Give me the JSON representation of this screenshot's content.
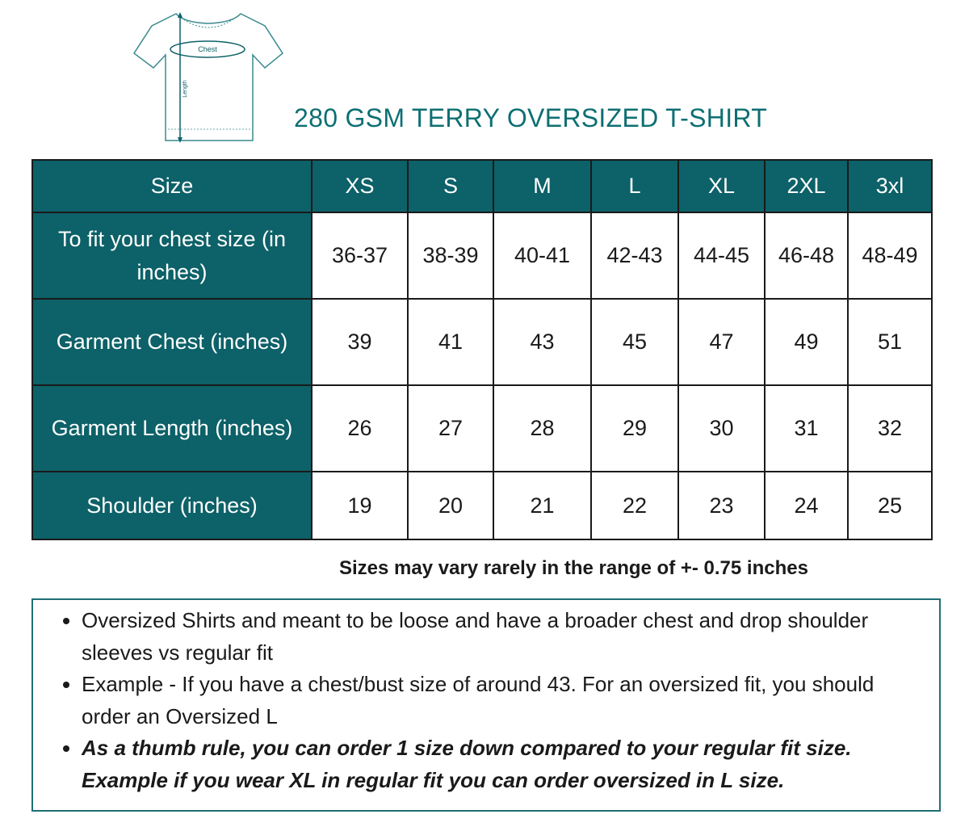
{
  "diagram": {
    "chest_label": "Chest",
    "length_label": "Length"
  },
  "title": "280 GSM TERRY OVERSIZED T-SHIRT",
  "table": {
    "header": [
      "Size",
      "XS",
      "S",
      "M",
      "L",
      "XL",
      "2XL",
      "3xl"
    ],
    "rows": [
      {
        "label": "To fit your chest size (in inches)",
        "values": [
          "36-37",
          "38-39",
          "40-41",
          "42-43",
          "44-45",
          "46-48",
          "48-49"
        ]
      },
      {
        "label": "Garment Chest (inches)",
        "values": [
          "39",
          "41",
          "43",
          "45",
          "47",
          "49",
          "51"
        ]
      },
      {
        "label": "Garment Length (inches)",
        "values": [
          "26",
          "27",
          "28",
          "29",
          "30",
          "31",
          "32"
        ]
      },
      {
        "label": "Shoulder (inches)",
        "values": [
          "19",
          "20",
          "21",
          "22",
          "23",
          "24",
          "25"
        ]
      }
    ]
  },
  "note": "Sizes may vary rarely in the range of +- 0.75 inches",
  "bullets": [
    "Oversized Shirts and meant to be loose and have a broader chest and drop shoulder sleeves vs regular fit",
    "Example - If you have a chest/bust size of around 43. For an oversized fit, you should order an Oversized L",
    "As a thumb rule, you can order 1 size down compared to your regular fit size. Example if you wear XL in regular fit you can order oversized in L size."
  ],
  "colors": {
    "header_bg": "#0d6168",
    "title": "#0d6f73",
    "outline": "#1f6f74"
  }
}
